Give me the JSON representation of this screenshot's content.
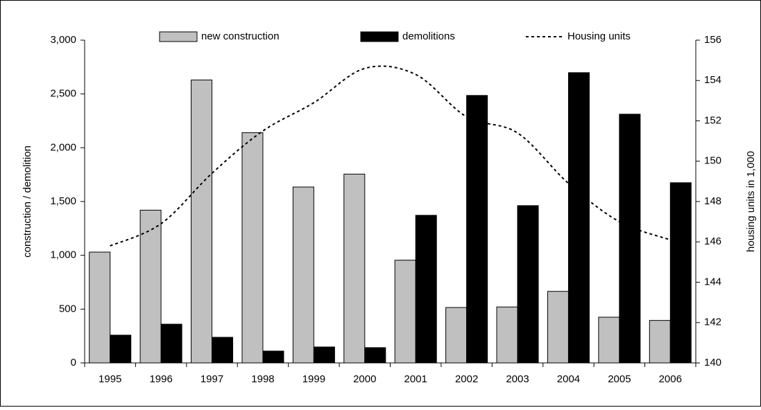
{
  "chart_data": {
    "type": "bar",
    "categories": [
      "1995",
      "1996",
      "1997",
      "1998",
      "1999",
      "2000",
      "2001",
      "2002",
      "2003",
      "2004",
      "2005",
      "2006"
    ],
    "series": [
      {
        "name": "new construction",
        "color": "#c0c0c0",
        "values": [
          1030,
          1420,
          2630,
          2140,
          1635,
          1755,
          955,
          515,
          520,
          665,
          425,
          395
        ]
      },
      {
        "name": "demolitions",
        "color": "#000000",
        "values": [
          258,
          360,
          238,
          110,
          148,
          142,
          1372,
          2486,
          1462,
          2698,
          2312,
          1675
        ]
      },
      {
        "name": "Housing units",
        "color": "#000000",
        "type": "line",
        "axis": "y2",
        "values": [
          145.8,
          146.9,
          149.4,
          151.5,
          152.9,
          154.6,
          154.3,
          152.2,
          151.4,
          148.9,
          147.0,
          146.1
        ]
      }
    ],
    "y_label": "construction / demolition",
    "y2_label": "housing units in 1,000",
    "ylim": [
      0,
      3000
    ],
    "yticks": [
      0,
      500,
      {
        "value": 1000,
        "label": "1,000"
      },
      {
        "value": 1500,
        "label": "1,500"
      },
      {
        "value": 2000,
        "label": "2,000"
      },
      {
        "value": 2500,
        "label": "2,500"
      },
      {
        "value": 3000,
        "label": "3,000"
      }
    ],
    "y2lim": [
      140,
      156
    ],
    "y2ticks": [
      140,
      142,
      144,
      146,
      148,
      150,
      152,
      154,
      156
    ],
    "grid": false,
    "legend": "top"
  }
}
